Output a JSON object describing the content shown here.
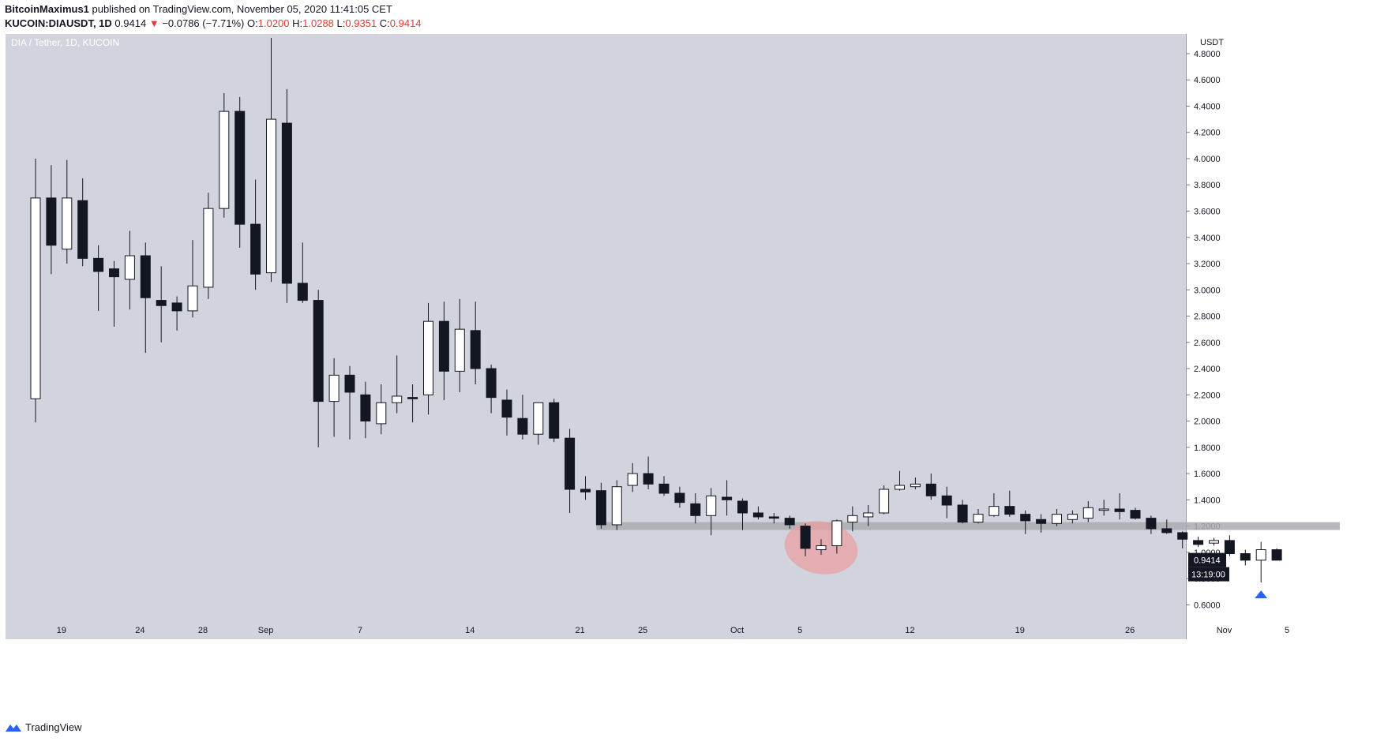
{
  "header": {
    "author": "BitcoinMaximus1",
    "published_text": "published on TradingView.com, November 05, 2020 11:41:05 CET",
    "symbol": "KUCOIN:DIAUSDT, 1D",
    "last": "0.9414",
    "change_arrow": "▼",
    "change": "−0.0786 (−7.71%)",
    "o_label": "O:",
    "o_value": "1.0200",
    "h_label": "H:",
    "h_value": "1.0288",
    "l_label": "L:",
    "l_value": "0.9351",
    "c_label": "C:",
    "c_value": "0.9414"
  },
  "footer": {
    "brand": "TradingView",
    "logo_icon": "tradingview-logo-icon"
  },
  "colors": {
    "plot_bg": "#d1d4dc",
    "bull_fill": "#ffffff",
    "bear_fill": "#131722",
    "wick": "#131722",
    "support_zone": "#a9abb0",
    "highlight_ellipse": "#e8a0a3",
    "arrow": "#2962ff",
    "price_tag": "#131722",
    "header_red": "#e53935"
  },
  "chart_data": {
    "type": "candlestick",
    "title": "DIA / Tether, 1D, KUCOIN",
    "y_axis_label": "USDT",
    "ylim": [
      0.5,
      4.95
    ],
    "y_ticks": [
      "0.6000",
      "0.8000",
      "1.0000",
      "1.2000",
      "1.4000",
      "1.6000",
      "1.8000",
      "2.0000",
      "2.2000",
      "2.4000",
      "2.6000",
      "2.8000",
      "3.0000",
      "3.2000",
      "3.4000",
      "3.6000",
      "3.8000",
      "4.0000",
      "4.2000",
      "4.4000",
      "4.6000",
      "4.8000"
    ],
    "x_ticks": [
      {
        "label": "19",
        "index": 1
      },
      {
        "label": "24",
        "index": 6
      },
      {
        "label": "28",
        "index": 10
      },
      {
        "label": "Sep",
        "index": 14
      },
      {
        "label": "7",
        "index": 20
      },
      {
        "label": "14",
        "index": 27
      },
      {
        "label": "21",
        "index": 34
      },
      {
        "label": "25",
        "index": 38
      },
      {
        "label": "Oct",
        "index": 44
      },
      {
        "label": "5",
        "index": 48
      },
      {
        "label": "12",
        "index": 55
      },
      {
        "label": "19",
        "index": 62
      },
      {
        "label": "26",
        "index": 69
      },
      {
        "label": "Nov",
        "index": 75
      },
      {
        "label": "5",
        "index": 79
      }
    ],
    "candles": [
      {
        "o": 2.17,
        "h": 4.0,
        "l": 1.99,
        "c": 3.7
      },
      {
        "o": 3.7,
        "h": 3.95,
        "l": 3.12,
        "c": 3.34
      },
      {
        "o": 3.31,
        "h": 3.99,
        "l": 3.2,
        "c": 3.7
      },
      {
        "o": 3.68,
        "h": 3.85,
        "l": 3.18,
        "c": 3.24
      },
      {
        "o": 3.24,
        "h": 3.34,
        "l": 2.84,
        "c": 3.14
      },
      {
        "o": 3.16,
        "h": 3.22,
        "l": 2.72,
        "c": 3.1
      },
      {
        "o": 3.08,
        "h": 3.45,
        "l": 2.85,
        "c": 3.26
      },
      {
        "o": 3.26,
        "h": 3.36,
        "l": 2.52,
        "c": 2.94
      },
      {
        "o": 2.92,
        "h": 3.18,
        "l": 2.6,
        "c": 2.88
      },
      {
        "o": 2.9,
        "h": 2.95,
        "l": 2.69,
        "c": 2.84
      },
      {
        "o": 2.84,
        "h": 3.38,
        "l": 2.79,
        "c": 3.03
      },
      {
        "o": 3.02,
        "h": 3.74,
        "l": 2.93,
        "c": 3.62
      },
      {
        "o": 3.62,
        "h": 4.5,
        "l": 3.55,
        "c": 4.36
      },
      {
        "o": 4.36,
        "h": 4.47,
        "l": 3.32,
        "c": 3.5
      },
      {
        "o": 3.5,
        "h": 3.84,
        "l": 3.0,
        "c": 3.12
      },
      {
        "o": 3.13,
        "h": 4.92,
        "l": 3.06,
        "c": 4.3
      },
      {
        "o": 4.27,
        "h": 4.53,
        "l": 2.9,
        "c": 3.05
      },
      {
        "o": 3.05,
        "h": 3.36,
        "l": 2.9,
        "c": 2.92
      },
      {
        "o": 2.92,
        "h": 3.0,
        "l": 1.8,
        "c": 2.15
      },
      {
        "o": 2.15,
        "h": 2.48,
        "l": 1.88,
        "c": 2.35
      },
      {
        "o": 2.35,
        "h": 2.42,
        "l": 1.86,
        "c": 2.22
      },
      {
        "o": 2.2,
        "h": 2.3,
        "l": 1.87,
        "c": 2.0
      },
      {
        "o": 1.98,
        "h": 2.28,
        "l": 1.9,
        "c": 2.14
      },
      {
        "o": 2.14,
        "h": 2.5,
        "l": 2.06,
        "c": 2.19
      },
      {
        "o": 2.18,
        "h": 2.28,
        "l": 1.99,
        "c": 2.17
      },
      {
        "o": 2.2,
        "h": 2.9,
        "l": 2.05,
        "c": 2.76
      },
      {
        "o": 2.76,
        "h": 2.91,
        "l": 2.16,
        "c": 2.38
      },
      {
        "o": 2.38,
        "h": 2.93,
        "l": 2.22,
        "c": 2.7
      },
      {
        "o": 2.69,
        "h": 2.91,
        "l": 2.28,
        "c": 2.4
      },
      {
        "o": 2.4,
        "h": 2.43,
        "l": 2.06,
        "c": 2.18
      },
      {
        "o": 2.16,
        "h": 2.24,
        "l": 1.89,
        "c": 2.03
      },
      {
        "o": 2.02,
        "h": 2.2,
        "l": 1.86,
        "c": 1.9
      },
      {
        "o": 1.9,
        "h": 2.12,
        "l": 1.82,
        "c": 2.14
      },
      {
        "o": 2.14,
        "h": 2.17,
        "l": 1.84,
        "c": 1.87
      },
      {
        "o": 1.87,
        "h": 1.94,
        "l": 1.3,
        "c": 1.48
      },
      {
        "o": 1.48,
        "h": 1.58,
        "l": 1.4,
        "c": 1.46
      },
      {
        "o": 1.47,
        "h": 1.53,
        "l": 1.18,
        "c": 1.21
      },
      {
        "o": 1.21,
        "h": 1.55,
        "l": 1.17,
        "c": 1.5
      },
      {
        "o": 1.51,
        "h": 1.68,
        "l": 1.46,
        "c": 1.6
      },
      {
        "o": 1.6,
        "h": 1.73,
        "l": 1.48,
        "c": 1.52
      },
      {
        "o": 1.52,
        "h": 1.58,
        "l": 1.43,
        "c": 1.45
      },
      {
        "o": 1.45,
        "h": 1.5,
        "l": 1.34,
        "c": 1.38
      },
      {
        "o": 1.37,
        "h": 1.45,
        "l": 1.22,
        "c": 1.28
      },
      {
        "o": 1.28,
        "h": 1.49,
        "l": 1.13,
        "c": 1.43
      },
      {
        "o": 1.42,
        "h": 1.55,
        "l": 1.28,
        "c": 1.4
      },
      {
        "o": 1.39,
        "h": 1.41,
        "l": 1.17,
        "c": 1.3
      },
      {
        "o": 1.3,
        "h": 1.35,
        "l": 1.25,
        "c": 1.27
      },
      {
        "o": 1.27,
        "h": 1.3,
        "l": 1.22,
        "c": 1.26
      },
      {
        "o": 1.26,
        "h": 1.28,
        "l": 1.18,
        "c": 1.21
      },
      {
        "o": 1.2,
        "h": 1.22,
        "l": 0.97,
        "c": 1.03
      },
      {
        "o": 1.02,
        "h": 1.1,
        "l": 0.98,
        "c": 1.05
      },
      {
        "o": 1.05,
        "h": 1.25,
        "l": 0.99,
        "c": 1.24
      },
      {
        "o": 1.23,
        "h": 1.35,
        "l": 1.16,
        "c": 1.28
      },
      {
        "o": 1.27,
        "h": 1.36,
        "l": 1.2,
        "c": 1.3
      },
      {
        "o": 1.3,
        "h": 1.51,
        "l": 1.29,
        "c": 1.48
      },
      {
        "o": 1.48,
        "h": 1.62,
        "l": 1.47,
        "c": 1.51
      },
      {
        "o": 1.5,
        "h": 1.57,
        "l": 1.48,
        "c": 1.52
      },
      {
        "o": 1.52,
        "h": 1.6,
        "l": 1.4,
        "c": 1.43
      },
      {
        "o": 1.43,
        "h": 1.5,
        "l": 1.26,
        "c": 1.36
      },
      {
        "o": 1.36,
        "h": 1.4,
        "l": 1.22,
        "c": 1.23
      },
      {
        "o": 1.23,
        "h": 1.33,
        "l": 1.22,
        "c": 1.29
      },
      {
        "o": 1.28,
        "h": 1.45,
        "l": 1.27,
        "c": 1.35
      },
      {
        "o": 1.35,
        "h": 1.47,
        "l": 1.27,
        "c": 1.29
      },
      {
        "o": 1.29,
        "h": 1.32,
        "l": 1.14,
        "c": 1.24
      },
      {
        "o": 1.25,
        "h": 1.29,
        "l": 1.15,
        "c": 1.22
      },
      {
        "o": 1.22,
        "h": 1.33,
        "l": 1.2,
        "c": 1.29
      },
      {
        "o": 1.25,
        "h": 1.32,
        "l": 1.22,
        "c": 1.29
      },
      {
        "o": 1.26,
        "h": 1.39,
        "l": 1.23,
        "c": 1.34
      },
      {
        "o": 1.32,
        "h": 1.4,
        "l": 1.28,
        "c": 1.33
      },
      {
        "o": 1.33,
        "h": 1.45,
        "l": 1.25,
        "c": 1.31
      },
      {
        "o": 1.32,
        "h": 1.34,
        "l": 1.25,
        "c": 1.26
      },
      {
        "o": 1.26,
        "h": 1.28,
        "l": 1.14,
        "c": 1.18
      },
      {
        "o": 1.18,
        "h": 1.25,
        "l": 1.14,
        "c": 1.15
      },
      {
        "o": 1.15,
        "h": 1.16,
        "l": 1.03,
        "c": 1.1
      },
      {
        "o": 1.09,
        "h": 1.12,
        "l": 1.04,
        "c": 1.06
      },
      {
        "o": 1.07,
        "h": 1.11,
        "l": 1.05,
        "c": 1.09
      },
      {
        "o": 1.09,
        "h": 1.13,
        "l": 0.97,
        "c": 0.99
      },
      {
        "o": 0.99,
        "h": 1.02,
        "l": 0.9,
        "c": 0.94
      },
      {
        "o": 0.94,
        "h": 1.08,
        "l": 0.77,
        "c": 1.02
      },
      {
        "o": 1.02,
        "h": 1.03,
        "l": 0.94,
        "c": 0.94
      }
    ],
    "support_zone": {
      "low": 1.17,
      "high": 1.23,
      "from_index": 36,
      "to_index": 80
    },
    "highlight_ellipse": {
      "center_index": 50,
      "center_price": 1.035,
      "span_bars": 2.6,
      "span_price": 0.2
    },
    "arrow_marker": {
      "index": 78,
      "price": 0.68
    },
    "last_price_tag": "0.9414",
    "countdown_tag": "13:19:00",
    "last_price": 0.9414
  }
}
